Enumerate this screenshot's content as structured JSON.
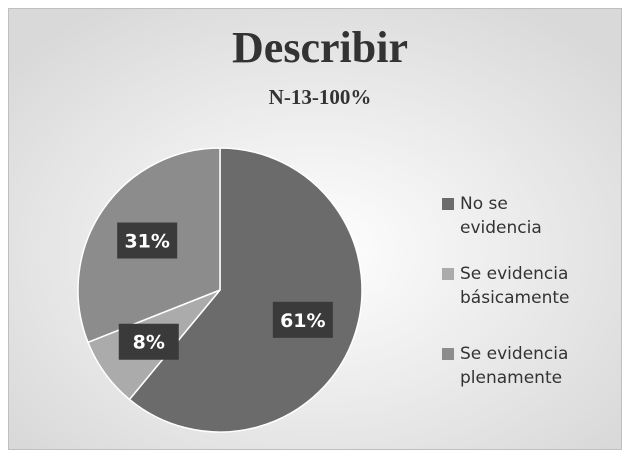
{
  "chart_data": {
    "type": "pie",
    "title": "Describir",
    "subtitle": "N-13-100%",
    "categories": [
      "No se evidencia",
      "Se evidencia básicamente",
      "Se evidencia plenamente"
    ],
    "values": [
      61,
      8,
      31
    ],
    "value_labels": [
      "61%",
      "8%",
      "31%"
    ],
    "colors": [
      "#6b6b6b",
      "#ababab",
      "#8c8c8c"
    ],
    "legend": "right"
  }
}
